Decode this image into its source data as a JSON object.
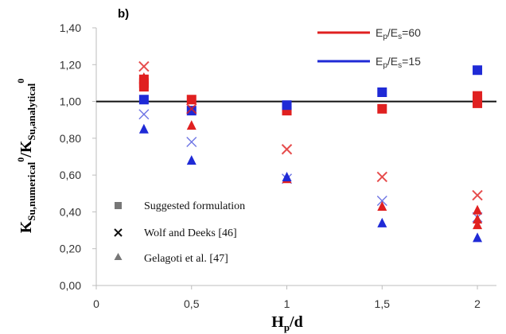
{
  "chart_data": {
    "type": "scatter",
    "panel_label": "b)",
    "xlabel": {
      "main": "H",
      "sub": "p",
      "rest": "/d"
    },
    "ylabel": {
      "k1": "K",
      "s1": "Su,numerical",
      "sup1": "0",
      "slash": "/K",
      "s2": "Su,analytical",
      "sup2": "0"
    },
    "xlim": [
      0,
      2.1
    ],
    "ylim": [
      0,
      1.4
    ],
    "xticks": [
      "0",
      "0,5",
      "1",
      "1,5",
      "2"
    ],
    "xtick_values": [
      0,
      0.5,
      1,
      1.5,
      2
    ],
    "yticks": [
      "0,00",
      "0,20",
      "0,40",
      "0,60",
      "0,80",
      "1,00",
      "1,20",
      "1,40"
    ],
    "ytick_values": [
      0,
      0.2,
      0.4,
      0.6,
      0.8,
      1.0,
      1.2,
      1.4
    ],
    "reference_line": 1.0,
    "grid": false,
    "colors": {
      "ratio60": "#e02020",
      "ratio15": "#1f2ad6",
      "reference": "#111111",
      "gray": "#777777"
    },
    "color_legend": [
      {
        "base": "E",
        "sub1": "p",
        "mid": "/E",
        "sub2": "s",
        "tail": "=60",
        "color_key": "ratio60"
      },
      {
        "base": "E",
        "sub1": "p",
        "mid": "/E",
        "sub2": "s",
        "tail": "=15",
        "color_key": "ratio15"
      }
    ],
    "marker_legend": [
      {
        "marker": "square",
        "label": "Suggested formulation"
      },
      {
        "marker": "cross",
        "label": "Wolf and Deeks [46]"
      },
      {
        "marker": "triangle",
        "label": "Gelagoti et al. [47]"
      }
    ],
    "series": [
      {
        "method": "Suggested formulation",
        "ratio": "60",
        "marker": "square",
        "color_key": "ratio60",
        "x": [
          0.25,
          0.25,
          0.25,
          0.5,
          1,
          1.5,
          2,
          2,
          2
        ],
        "y": [
          1.12,
          1.1,
          1.08,
          1.01,
          0.95,
          0.96,
          1.03,
          1.01,
          0.99
        ]
      },
      {
        "method": "Suggested formulation",
        "ratio": "15",
        "marker": "square",
        "color_key": "ratio15",
        "x": [
          0.25,
          0.5,
          1,
          1.5,
          2
        ],
        "y": [
          1.01,
          0.95,
          0.98,
          1.05,
          1.17
        ]
      },
      {
        "method": "Wolf and Deeks [46]",
        "ratio": "60",
        "marker": "cross",
        "color_key": "ratio60",
        "x": [
          0.25,
          0.5,
          1,
          1.5,
          2
        ],
        "y": [
          1.19,
          0.96,
          0.74,
          0.59,
          0.49
        ]
      },
      {
        "method": "Wolf and Deeks [46]",
        "ratio": "15",
        "marker": "cross",
        "color_key": "ratio15",
        "x": [
          0.25,
          0.5,
          1,
          1.5,
          2
        ],
        "y": [
          0.93,
          0.78,
          0.58,
          0.46,
          0.37
        ]
      },
      {
        "method": "Gelagoti et al. [47]",
        "ratio": "60",
        "marker": "triangle",
        "color_key": "ratio60",
        "x": [
          0.25,
          0.5,
          1,
          1.5,
          2,
          2,
          2
        ],
        "y": [
          1.13,
          0.87,
          0.58,
          0.43,
          0.41,
          0.36,
          0.33
        ]
      },
      {
        "method": "Gelagoti et al. [47]",
        "ratio": "15",
        "marker": "triangle",
        "color_key": "ratio15",
        "x": [
          0.25,
          0.5,
          1,
          1.5,
          2
        ],
        "y": [
          0.85,
          0.68,
          0.59,
          0.34,
          0.26
        ]
      }
    ]
  }
}
